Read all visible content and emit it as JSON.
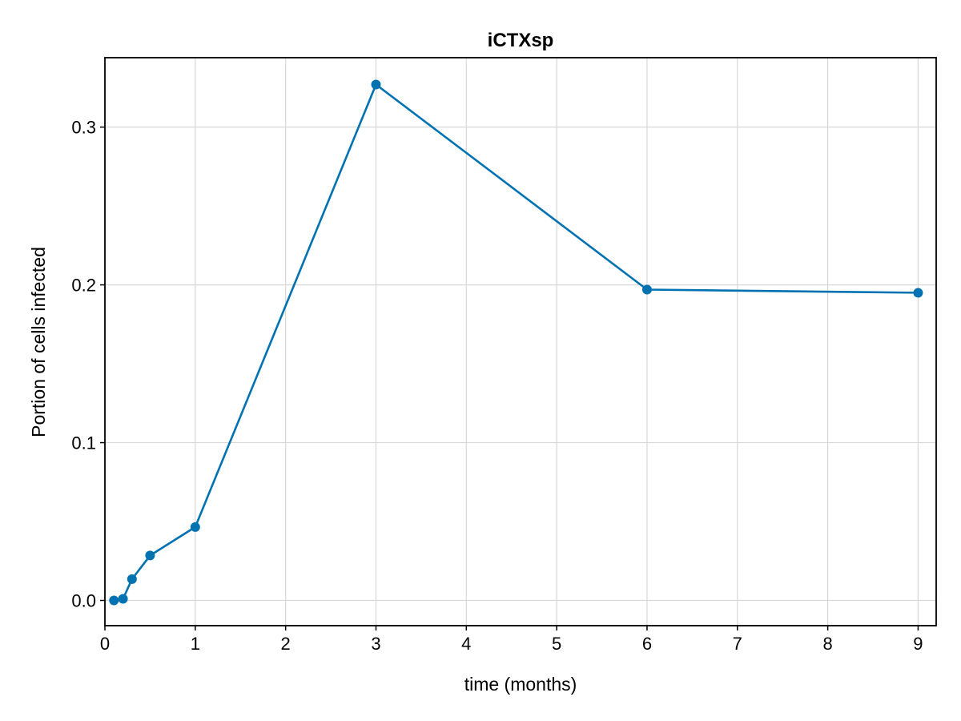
{
  "chart_data": {
    "type": "line",
    "title": "iCTXsp",
    "xlabel": "time (months)",
    "ylabel": "Portion of cells infected",
    "xlim": [
      0,
      9.2
    ],
    "ylim": [
      -0.016,
      0.344
    ],
    "xticks": [
      "0",
      "1",
      "2",
      "3",
      "4",
      "5",
      "6",
      "7",
      "8",
      "9"
    ],
    "yticks": [
      "0.0",
      "0.1",
      "0.2",
      "0.3"
    ],
    "grid": true,
    "series": [
      {
        "color": "#0072b2",
        "markers": true,
        "x": [
          0.1,
          0.2,
          0.3,
          0.5,
          1,
          3,
          6,
          9
        ],
        "y": [
          0.0,
          0.001,
          0.0135,
          0.0285,
          0.0465,
          0.327,
          0.197,
          0.195
        ]
      }
    ]
  }
}
